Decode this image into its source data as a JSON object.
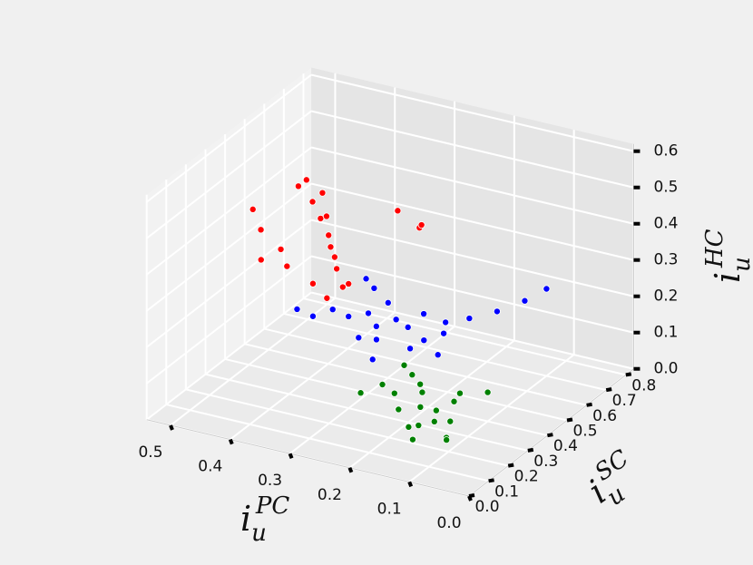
{
  "chart_data": {
    "type": "scatter3d",
    "xlabel": {
      "base": "i",
      "sub": "u",
      "sup": "PC"
    },
    "ylabel": {
      "base": "i",
      "sub": "u",
      "sup": "SC"
    },
    "zlabel": {
      "base": "i",
      "sub": "u",
      "sup": "HC"
    },
    "xlim": [
      0,
      0.54
    ],
    "ylim": [
      0,
      0.84
    ],
    "zlim": [
      0,
      0.62
    ],
    "xticks": [
      {
        "value": 0,
        "label": "0.0"
      },
      0.1,
      0.2,
      0.3,
      0.4,
      0.5
    ],
    "yticks": [
      {
        "value": 0,
        "label": "0.0"
      },
      0.1,
      0.2,
      0.3,
      0.4,
      0.5,
      0.6,
      0.7,
      0.8
    ],
    "zticks": [
      {
        "value": 0,
        "label": "0.0"
      },
      0.1,
      0.2,
      0.3,
      0.4,
      0.5,
      0.6
    ],
    "grid": true,
    "series": [
      {
        "color": "#ff0000",
        "x": [
          0.42,
          0.4,
          0.38,
          0.36,
          0.35,
          0.34,
          0.33,
          0.37,
          0.39,
          0.31,
          0.45,
          0.5,
          0.48,
          0.44,
          0.3,
          0.28,
          0.41,
          0.36,
          0.33,
          0.27,
          0.46,
          0.32
        ],
        "y": [
          0.45,
          0.42,
          0.4,
          0.38,
          0.36,
          0.35,
          0.33,
          0.4,
          0.44,
          0.3,
          0.5,
          0.42,
          0.4,
          0.38,
          0.55,
          0.6,
          0.32,
          0.3,
          0.28,
          0.58,
          0.34,
          0.36
        ],
        "z": [
          0.52,
          0.48,
          0.45,
          0.42,
          0.4,
          0.38,
          0.36,
          0.46,
          0.5,
          0.33,
          0.47,
          0.42,
          0.38,
          0.35,
          0.44,
          0.38,
          0.34,
          0.32,
          0.3,
          0.4,
          0.33,
          0.31
        ]
      },
      {
        "color": "#0000ff",
        "x": [
          0.3,
          0.28,
          0.26,
          0.32,
          0.34,
          0.25,
          0.22,
          0.2,
          0.27,
          0.29,
          0.36,
          0.38,
          0.24,
          0.21,
          0.18,
          0.15,
          0.12,
          0.1,
          0.31,
          0.23,
          0.19,
          0.26,
          0.33,
          0.28
        ],
        "y": [
          0.4,
          0.38,
          0.42,
          0.36,
          0.34,
          0.45,
          0.44,
          0.48,
          0.35,
          0.32,
          0.3,
          0.28,
          0.5,
          0.52,
          0.55,
          0.6,
          0.65,
          0.7,
          0.46,
          0.4,
          0.42,
          0.3,
          0.48,
          0.44
        ],
        "z": [
          0.22,
          0.2,
          0.21,
          0.22,
          0.24,
          0.18,
          0.16,
          0.17,
          0.18,
          0.19,
          0.23,
          0.25,
          0.2,
          0.18,
          0.19,
          0.2,
          0.22,
          0.24,
          0.26,
          0.15,
          0.14,
          0.15,
          0.27,
          0.24
        ]
      },
      {
        "color": "#008000",
        "x": [
          0.18,
          0.16,
          0.15,
          0.14,
          0.17,
          0.19,
          0.2,
          0.13,
          0.12,
          0.22,
          0.24,
          0.26,
          0.28,
          0.11,
          0.1,
          0.16,
          0.21,
          0.14,
          0.18,
          0.23
        ],
        "y": [
          0.3,
          0.32,
          0.28,
          0.35,
          0.26,
          0.34,
          0.36,
          0.3,
          0.25,
          0.38,
          0.4,
          0.35,
          0.3,
          0.22,
          0.4,
          0.2,
          0.28,
          0.38,
          0.24,
          0.32
        ],
        "z": [
          0.05,
          0.04,
          0.03,
          0.06,
          0.02,
          0.07,
          0.08,
          0.03,
          0.01,
          0.09,
          0.1,
          0.06,
          0.05,
          0.02,
          0.08,
          0.01,
          0.04,
          0.07,
          0.02,
          0.06
        ]
      }
    ]
  }
}
